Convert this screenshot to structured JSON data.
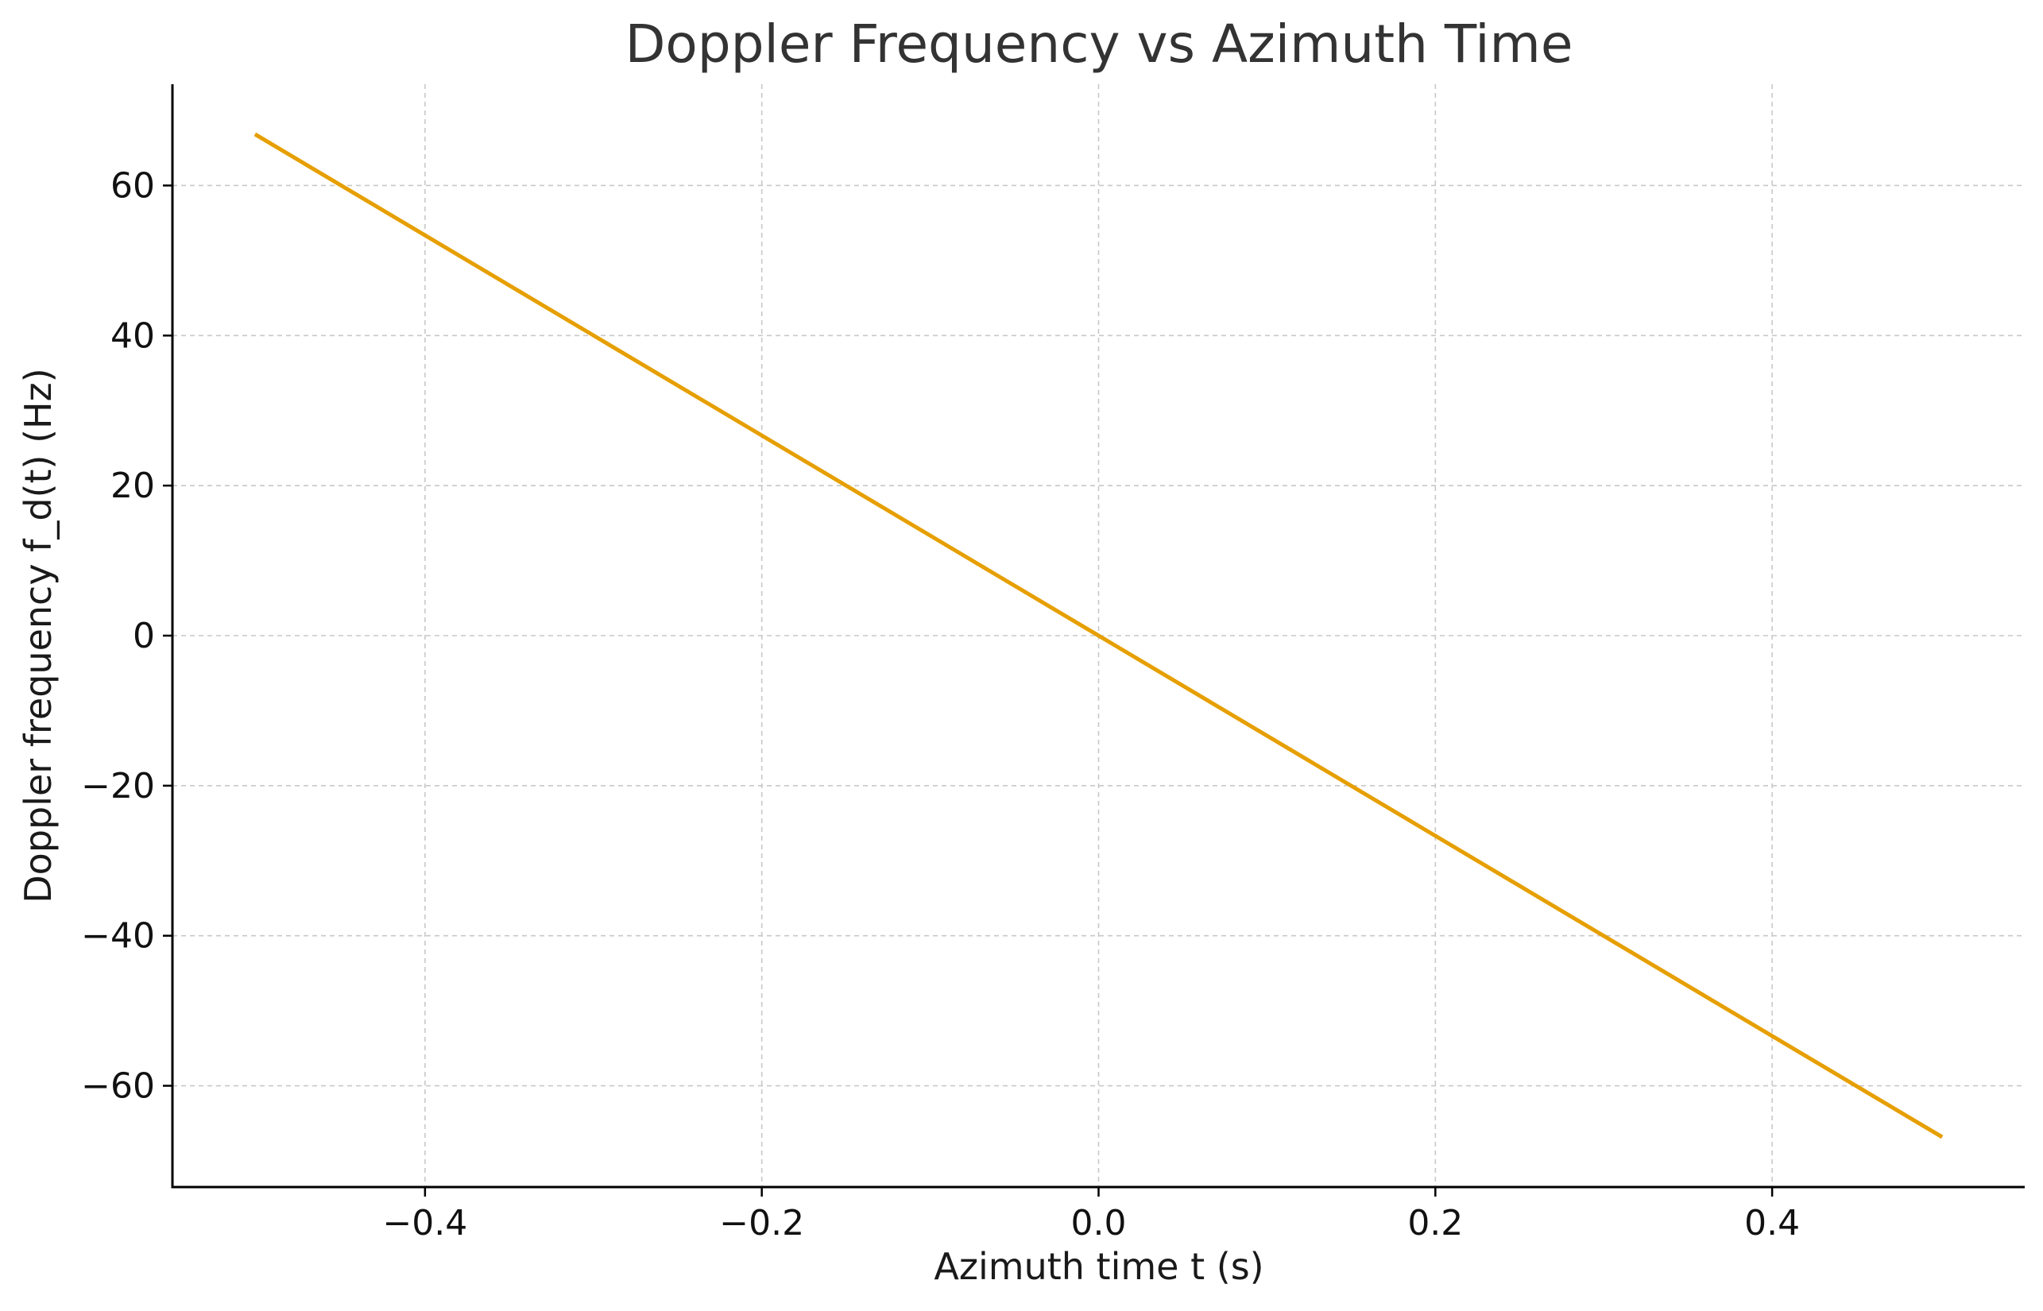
{
  "chart_data": {
    "type": "line",
    "title": "Doppler Frequency vs Azimuth Time",
    "xlabel": "Azimuth time t (s)",
    "ylabel": "Doppler frequency f_d(t) (Hz)",
    "xlim": [
      -0.55,
      0.55
    ],
    "ylim": [
      -73.5,
      73.5
    ],
    "x_ticks": [
      -0.4,
      -0.2,
      0.0,
      0.2,
      0.4
    ],
    "x_tick_labels": [
      "−0.4",
      "−0.2",
      "0.0",
      "0.2",
      "0.4"
    ],
    "y_ticks": [
      -60,
      -40,
      -20,
      0,
      20,
      40,
      60
    ],
    "y_tick_labels": [
      "−60",
      "−40",
      "−20",
      "0",
      "20",
      "40",
      "60"
    ],
    "grid": true,
    "series": [
      {
        "color": "#E69F00",
        "x": [
          -0.5,
          0.5
        ],
        "y": [
          66.7,
          -66.7
        ]
      }
    ]
  }
}
